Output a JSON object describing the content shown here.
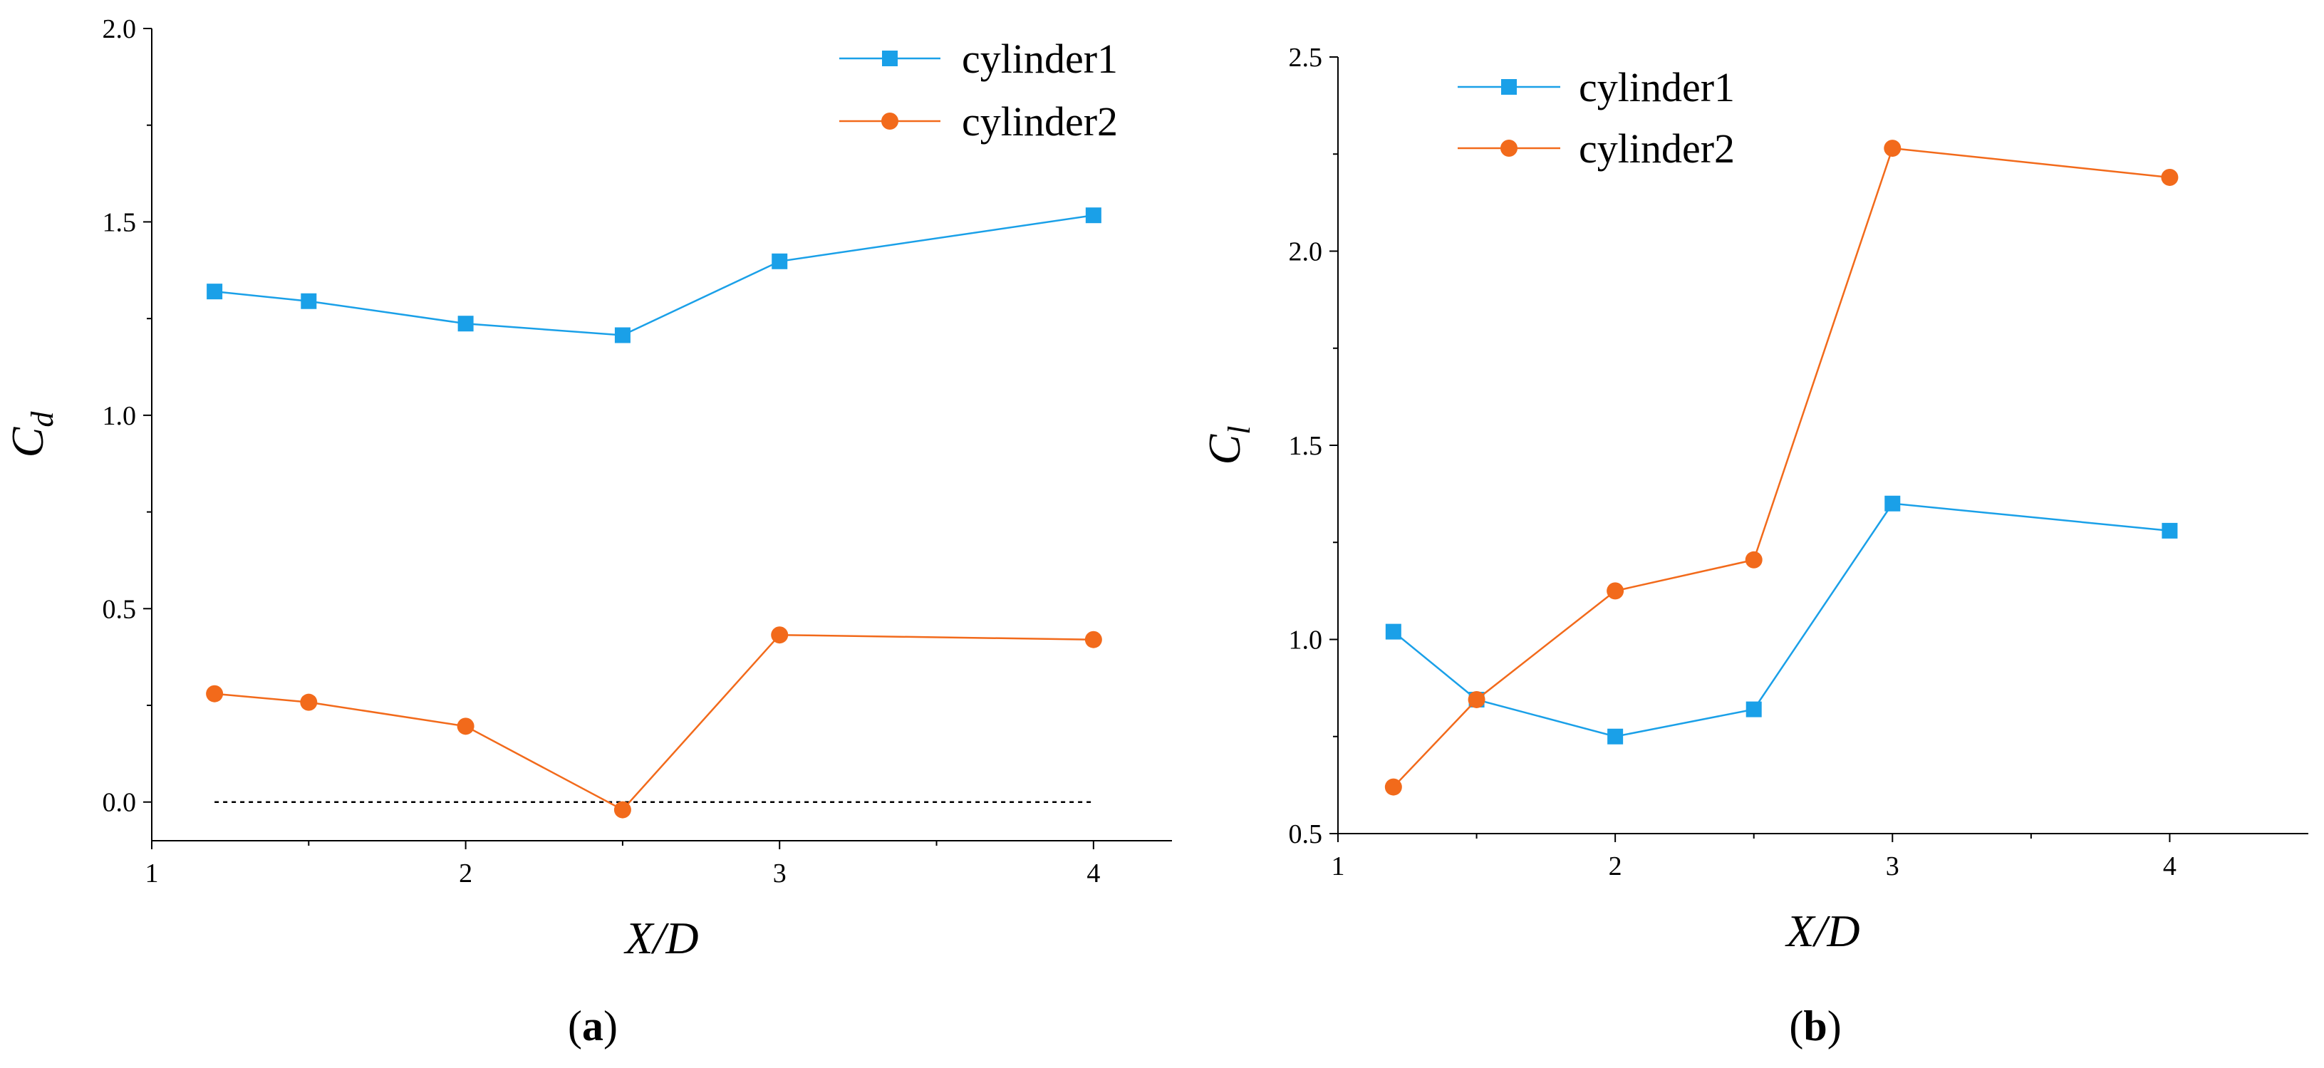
{
  "colors": {
    "cylinder1": "#1aa0e8",
    "cylinder2": "#f26a1b",
    "axis": "#000000"
  },
  "chart_data": [
    {
      "panel": "a",
      "caption_open": "(",
      "caption_letter": "a",
      "caption_close": ")",
      "type": "line",
      "xlabel": "X/D",
      "ylabel_main": "C",
      "ylabel_sub": "d",
      "xlim": [
        1,
        4.25
      ],
      "ylim": [
        -0.1,
        2.0
      ],
      "xticks": [
        1,
        2,
        3,
        4
      ],
      "xtick_labels": [
        "1",
        "2",
        "3",
        "4"
      ],
      "yticks": [
        0.0,
        0.5,
        1.0,
        1.5,
        2.0
      ],
      "ytick_labels": [
        "0.0",
        "0.5",
        "1.0",
        "1.5",
        "2.0"
      ],
      "legend_position": "top-right",
      "reference_line": {
        "y": 0.0,
        "x_from": 1.2,
        "x_to": 4.0,
        "style": "dotted"
      },
      "series": [
        {
          "name": "cylinder1",
          "marker": "square",
          "color": "#1aa0e8",
          "x": [
            1.2,
            1.5,
            2.0,
            2.5,
            3.0,
            4.0
          ],
          "y": [
            1.32,
            1.295,
            1.237,
            1.207,
            1.398,
            1.517
          ]
        },
        {
          "name": "cylinder2",
          "marker": "circle",
          "color": "#f26a1b",
          "x": [
            1.2,
            1.5,
            2.0,
            2.5,
            3.0,
            4.0
          ],
          "y": [
            0.28,
            0.258,
            0.196,
            -0.02,
            0.432,
            0.42
          ]
        }
      ]
    },
    {
      "panel": "b",
      "caption_open": "(",
      "caption_letter": "b",
      "caption_close": ")",
      "type": "line",
      "xlabel": "X/D",
      "ylabel_main": "C",
      "ylabel_sub": "l",
      "xlim": [
        1,
        4.5
      ],
      "ylim": [
        0.5,
        2.5
      ],
      "xticks": [
        1,
        2,
        3,
        4
      ],
      "xtick_labels": [
        "1",
        "2",
        "3",
        "4"
      ],
      "yticks": [
        0.5,
        1.0,
        1.5,
        2.0,
        2.5
      ],
      "ytick_labels": [
        "0.5",
        "1.0",
        "1.5",
        "2.0",
        "2.5"
      ],
      "legend_position": "top-left",
      "series": [
        {
          "name": "cylinder1",
          "marker": "square",
          "color": "#1aa0e8",
          "x": [
            1.2,
            1.5,
            2.0,
            2.5,
            3.0,
            4.0
          ],
          "y": [
            1.02,
            0.845,
            0.75,
            0.82,
            1.35,
            1.28
          ]
        },
        {
          "name": "cylinder2",
          "marker": "circle",
          "color": "#f26a1b",
          "x": [
            1.2,
            1.5,
            2.0,
            2.5,
            3.0,
            4.0
          ],
          "y": [
            0.62,
            0.845,
            1.125,
            1.205,
            2.265,
            2.19
          ]
        }
      ]
    }
  ]
}
